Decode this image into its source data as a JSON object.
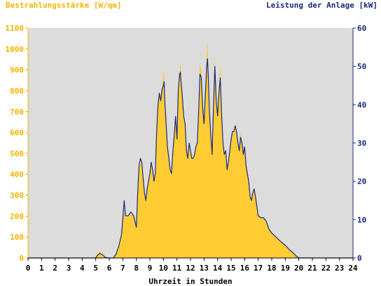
{
  "chart_data": {
    "type": "area",
    "left_axis_label": "Bestrahlungsstärke [W/qm]",
    "right_axis_label": "Leistung der Anlage [kW]",
    "xlabel": "Uhrzeit in Stunden",
    "xlim": [
      0,
      24
    ],
    "x_ticks": [
      "0",
      "1",
      "2",
      "3",
      "4",
      "5",
      "6",
      "7",
      "8",
      "9",
      "10",
      "11",
      "12",
      "13",
      "14",
      "15",
      "16",
      "17",
      "18",
      "19",
      "20",
      "21",
      "22",
      "23",
      "24"
    ],
    "ylim_left": [
      0,
      1100
    ],
    "y_ticks_left": [
      "0",
      "100",
      "200",
      "300",
      "400",
      "500",
      "600",
      "700",
      "800",
      "900",
      "1000",
      "1100"
    ],
    "ylim_right": [
      0,
      60
    ],
    "y_ticks_right": [
      "0",
      "10",
      "20",
      "30",
      "40",
      "50",
      "60"
    ],
    "grid": false,
    "colors": {
      "irradiance": "#ffcc33",
      "power": "#1c2a7a",
      "plot_bg": "#dcdcdc",
      "left_axis": "#f4b400",
      "right_axis": "#1c2a7a"
    },
    "series": [
      {
        "axis": "left",
        "style": "area",
        "points": [
          [
            0,
            0
          ],
          [
            5.0,
            0
          ],
          [
            5.1,
            15
          ],
          [
            5.3,
            30
          ],
          [
            5.5,
            20
          ],
          [
            5.7,
            5
          ],
          [
            5.9,
            0
          ],
          [
            6.3,
            0
          ],
          [
            6.5,
            20
          ],
          [
            6.7,
            60
          ],
          [
            6.9,
            110
          ],
          [
            7.0,
            180
          ],
          [
            7.1,
            230
          ],
          [
            7.2,
            190
          ],
          [
            7.4,
            200
          ],
          [
            7.6,
            210
          ],
          [
            7.8,
            200
          ],
          [
            8.0,
            140
          ],
          [
            8.1,
            300
          ],
          [
            8.2,
            420
          ],
          [
            8.3,
            460
          ],
          [
            8.4,
            440
          ],
          [
            8.5,
            380
          ],
          [
            8.6,
            300
          ],
          [
            8.7,
            270
          ],
          [
            8.8,
            330
          ],
          [
            9.0,
            400
          ],
          [
            9.1,
            450
          ],
          [
            9.2,
            420
          ],
          [
            9.3,
            370
          ],
          [
            9.4,
            410
          ],
          [
            9.5,
            600
          ],
          [
            9.6,
            730
          ],
          [
            9.7,
            790
          ],
          [
            9.8,
            760
          ],
          [
            9.9,
            800
          ],
          [
            10.0,
            880
          ],
          [
            10.05,
            900
          ],
          [
            10.1,
            770
          ],
          [
            10.2,
            640
          ],
          [
            10.3,
            540
          ],
          [
            10.4,
            470
          ],
          [
            10.5,
            420
          ],
          [
            10.6,
            410
          ],
          [
            10.7,
            520
          ],
          [
            10.8,
            580
          ],
          [
            10.9,
            680
          ],
          [
            11.0,
            560
          ],
          [
            11.1,
            800
          ],
          [
            11.2,
            900
          ],
          [
            11.25,
            940
          ],
          [
            11.3,
            890
          ],
          [
            11.4,
            780
          ],
          [
            11.5,
            680
          ],
          [
            11.6,
            640
          ],
          [
            11.7,
            520
          ],
          [
            11.8,
            470
          ],
          [
            11.9,
            560
          ],
          [
            12.0,
            520
          ],
          [
            12.1,
            470
          ],
          [
            12.2,
            480
          ],
          [
            12.3,
            500
          ],
          [
            12.4,
            530
          ],
          [
            12.5,
            560
          ],
          [
            12.6,
            700
          ],
          [
            12.7,
            930
          ],
          [
            12.8,
            900
          ],
          [
            12.9,
            720
          ],
          [
            13.0,
            640
          ],
          [
            13.1,
            800
          ],
          [
            13.2,
            960
          ],
          [
            13.25,
            1040
          ],
          [
            13.3,
            950
          ],
          [
            13.4,
            720
          ],
          [
            13.5,
            600
          ],
          [
            13.6,
            500
          ],
          [
            13.7,
            750
          ],
          [
            13.8,
            980
          ],
          [
            13.9,
            780
          ],
          [
            14.0,
            700
          ],
          [
            14.1,
            820
          ],
          [
            14.2,
            930
          ],
          [
            14.3,
            700
          ],
          [
            14.4,
            560
          ],
          [
            14.5,
            500
          ],
          [
            14.6,
            520
          ],
          [
            14.7,
            420
          ],
          [
            14.8,
            450
          ],
          [
            14.9,
            520
          ],
          [
            15.0,
            560
          ],
          [
            15.1,
            600
          ],
          [
            15.2,
            600
          ],
          [
            15.3,
            640
          ],
          [
            15.4,
            610
          ],
          [
            15.5,
            560
          ],
          [
            15.6,
            520
          ],
          [
            15.7,
            600
          ],
          [
            15.8,
            560
          ],
          [
            15.9,
            500
          ],
          [
            16.0,
            540
          ],
          [
            16.1,
            450
          ],
          [
            16.2,
            420
          ],
          [
            16.3,
            380
          ],
          [
            16.4,
            300
          ],
          [
            16.5,
            280
          ],
          [
            16.6,
            320
          ],
          [
            16.7,
            330
          ],
          [
            16.8,
            300
          ],
          [
            17.0,
            210
          ],
          [
            17.2,
            190
          ],
          [
            17.4,
            190
          ],
          [
            17.6,
            170
          ],
          [
            17.8,
            140
          ],
          [
            18.0,
            120
          ],
          [
            18.3,
            100
          ],
          [
            18.6,
            80
          ],
          [
            19.0,
            60
          ],
          [
            19.3,
            40
          ],
          [
            19.6,
            25
          ],
          [
            19.8,
            10
          ],
          [
            20.0,
            0
          ],
          [
            24,
            0
          ]
        ]
      },
      {
        "axis": "right",
        "style": "line",
        "points": [
          [
            0,
            0
          ],
          [
            5.0,
            0
          ],
          [
            5.1,
            0.6
          ],
          [
            5.3,
            1.2
          ],
          [
            5.5,
            0.8
          ],
          [
            5.7,
            0.2
          ],
          [
            5.9,
            0
          ],
          [
            6.3,
            0
          ],
          [
            6.5,
            1.0
          ],
          [
            6.7,
            3.0
          ],
          [
            6.9,
            6.0
          ],
          [
            7.0,
            10.0
          ],
          [
            7.1,
            15.0
          ],
          [
            7.2,
            11.0
          ],
          [
            7.4,
            11.0
          ],
          [
            7.6,
            12.0
          ],
          [
            7.8,
            11.0
          ],
          [
            8.0,
            8.0
          ],
          [
            8.1,
            17.0
          ],
          [
            8.2,
            24.0
          ],
          [
            8.3,
            26.0
          ],
          [
            8.4,
            25.0
          ],
          [
            8.5,
            21.0
          ],
          [
            8.6,
            17.0
          ],
          [
            8.7,
            15.0
          ],
          [
            8.8,
            18.0
          ],
          [
            9.0,
            22.0
          ],
          [
            9.1,
            25.0
          ],
          [
            9.2,
            23.0
          ],
          [
            9.3,
            20.0
          ],
          [
            9.4,
            22.0
          ],
          [
            9.5,
            33.0
          ],
          [
            9.6,
            40.0
          ],
          [
            9.7,
            43.0
          ],
          [
            9.8,
            41.0
          ],
          [
            9.9,
            44.0
          ],
          [
            10.0,
            45.0
          ],
          [
            10.05,
            46.0
          ],
          [
            10.1,
            41.0
          ],
          [
            10.2,
            35.0
          ],
          [
            10.3,
            29.0
          ],
          [
            10.4,
            26.0
          ],
          [
            10.5,
            23.0
          ],
          [
            10.6,
            22.0
          ],
          [
            10.7,
            28.0
          ],
          [
            10.8,
            32.0
          ],
          [
            10.9,
            37.0
          ],
          [
            11.0,
            31.0
          ],
          [
            11.1,
            44.0
          ],
          [
            11.2,
            48.0
          ],
          [
            11.25,
            48.5
          ],
          [
            11.3,
            46.0
          ],
          [
            11.4,
            42.0
          ],
          [
            11.5,
            37.0
          ],
          [
            11.6,
            35.0
          ],
          [
            11.7,
            28.0
          ],
          [
            11.8,
            26.0
          ],
          [
            11.9,
            30.0
          ],
          [
            12.0,
            28.0
          ],
          [
            12.1,
            26.0
          ],
          [
            12.2,
            26.0
          ],
          [
            12.3,
            27.0
          ],
          [
            12.4,
            29.0
          ],
          [
            12.5,
            30.0
          ],
          [
            12.6,
            38.0
          ],
          [
            12.7,
            48.0
          ],
          [
            12.8,
            47.0
          ],
          [
            12.9,
            39.0
          ],
          [
            13.0,
            35.0
          ],
          [
            13.1,
            43.0
          ],
          [
            13.2,
            50.0
          ],
          [
            13.25,
            52.0
          ],
          [
            13.3,
            49.0
          ],
          [
            13.4,
            38.0
          ],
          [
            13.5,
            32.0
          ],
          [
            13.6,
            27.0
          ],
          [
            13.7,
            40.0
          ],
          [
            13.8,
            50.0
          ],
          [
            13.9,
            41.0
          ],
          [
            14.0,
            37.0
          ],
          [
            14.1,
            43.0
          ],
          [
            14.2,
            47.0
          ],
          [
            14.3,
            37.0
          ],
          [
            14.4,
            30.0
          ],
          [
            14.5,
            27.0
          ],
          [
            14.6,
            28.0
          ],
          [
            14.7,
            23.0
          ],
          [
            14.8,
            25.0
          ],
          [
            14.9,
            28.0
          ],
          [
            15.0,
            31.0
          ],
          [
            15.1,
            33.0
          ],
          [
            15.2,
            33.0
          ],
          [
            15.3,
            34.5
          ],
          [
            15.4,
            33.0
          ],
          [
            15.5,
            30.0
          ],
          [
            15.6,
            28.0
          ],
          [
            15.7,
            31.5
          ],
          [
            15.8,
            30.0
          ],
          [
            15.9,
            27.0
          ],
          [
            16.0,
            29.0
          ],
          [
            16.1,
            24.0
          ],
          [
            16.2,
            22.0
          ],
          [
            16.3,
            20.0
          ],
          [
            16.4,
            16.0
          ],
          [
            16.5,
            15.0
          ],
          [
            16.6,
            17.0
          ],
          [
            16.7,
            18.0
          ],
          [
            16.8,
            16.0
          ],
          [
            17.0,
            11.0
          ],
          [
            17.2,
            10.5
          ],
          [
            17.4,
            10.5
          ],
          [
            17.6,
            9.5
          ],
          [
            17.8,
            7.5
          ],
          [
            18.0,
            6.5
          ],
          [
            18.3,
            5.5
          ],
          [
            18.6,
            4.5
          ],
          [
            19.0,
            3.3
          ],
          [
            19.3,
            2.2
          ],
          [
            19.6,
            1.3
          ],
          [
            19.8,
            0.5
          ],
          [
            20.0,
            0
          ],
          [
            24,
            0
          ]
        ]
      }
    ]
  }
}
